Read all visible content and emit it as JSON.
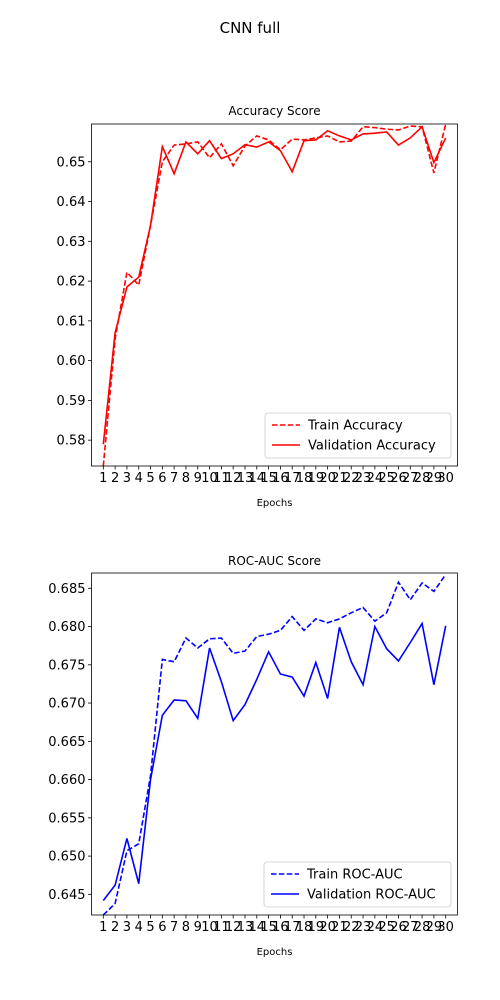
{
  "suptitle": "CNN full",
  "chart_data": [
    {
      "type": "line",
      "title": "Accuracy Score",
      "xlabel": "Epochs",
      "ylabel": "",
      "ylim": [
        0.5735,
        0.6595
      ],
      "yticks": [
        "0.58",
        "0.59",
        "0.60",
        "0.61",
        "0.62",
        "0.63",
        "0.64",
        "0.65"
      ],
      "ytick_values": [
        0.58,
        0.59,
        0.6,
        0.61,
        0.62,
        0.63,
        0.64,
        0.65
      ],
      "x": [
        1,
        2,
        3,
        4,
        5,
        6,
        7,
        8,
        9,
        10,
        11,
        12,
        13,
        14,
        15,
        16,
        17,
        18,
        19,
        20,
        21,
        22,
        23,
        24,
        25,
        26,
        27,
        28,
        29,
        30
      ],
      "legend_position": "lower right",
      "grid": false,
      "color": "#ff0000",
      "series": [
        {
          "name": "Train Accuracy",
          "style": "dashed",
          "values": [
            0.5735,
            0.6055,
            0.6222,
            0.619,
            0.634,
            0.65,
            0.6542,
            0.6545,
            0.655,
            0.651,
            0.6545,
            0.649,
            0.654,
            0.6565,
            0.6555,
            0.653,
            0.6557,
            0.6555,
            0.656,
            0.6565,
            0.655,
            0.6552,
            0.6588,
            0.6586,
            0.6582,
            0.658,
            0.659,
            0.6588,
            0.6472,
            0.6595
          ]
        },
        {
          "name": "Validation Accuracy",
          "style": "solid",
          "values": [
            0.579,
            0.607,
            0.6185,
            0.621,
            0.634,
            0.6538,
            0.647,
            0.655,
            0.652,
            0.6553,
            0.6508,
            0.652,
            0.6543,
            0.6537,
            0.655,
            0.6528,
            0.6475,
            0.6553,
            0.6555,
            0.6578,
            0.6565,
            0.6555,
            0.657,
            0.6572,
            0.6575,
            0.6542,
            0.656,
            0.6588,
            0.6498,
            0.656
          ]
        }
      ]
    },
    {
      "type": "line",
      "title": "ROC-AUC Score",
      "xlabel": "Epochs",
      "ylabel": "",
      "ylim": [
        0.6423,
        0.687
      ],
      "yticks": [
        "0.645",
        "0.650",
        "0.655",
        "0.660",
        "0.665",
        "0.670",
        "0.675",
        "0.680",
        "0.685"
      ],
      "ytick_values": [
        0.645,
        0.65,
        0.655,
        0.66,
        0.665,
        0.67,
        0.675,
        0.68,
        0.685
      ],
      "x": [
        1,
        2,
        3,
        4,
        5,
        6,
        7,
        8,
        9,
        10,
        11,
        12,
        13,
        14,
        15,
        16,
        17,
        18,
        19,
        20,
        21,
        22,
        23,
        24,
        25,
        26,
        27,
        28,
        29,
        30
      ],
      "legend_position": "lower right",
      "grid": false,
      "color": "#0000ff",
      "series": [
        {
          "name": "Train ROC-AUC",
          "style": "dashed",
          "values": [
            0.6423,
            0.6438,
            0.6507,
            0.6516,
            0.6605,
            0.6757,
            0.6754,
            0.6785,
            0.6772,
            0.6784,
            0.6785,
            0.6765,
            0.6768,
            0.6787,
            0.679,
            0.6795,
            0.6813,
            0.6795,
            0.681,
            0.6805,
            0.681,
            0.6818,
            0.6825,
            0.6807,
            0.6818,
            0.6858,
            0.6835,
            0.6857,
            0.6846,
            0.6868
          ]
        },
        {
          "name": "Validation ROC-AUC",
          "style": "solid",
          "values": [
            0.6442,
            0.6462,
            0.6523,
            0.6464,
            0.66,
            0.6684,
            0.6704,
            0.6703,
            0.668,
            0.6772,
            0.6728,
            0.6677,
            0.6698,
            0.6731,
            0.6767,
            0.6738,
            0.6734,
            0.6709,
            0.6753,
            0.6706,
            0.6799,
            0.6754,
            0.6724,
            0.68,
            0.6771,
            0.6755,
            0.6779,
            0.6804,
            0.6724,
            0.6801
          ]
        }
      ]
    }
  ]
}
